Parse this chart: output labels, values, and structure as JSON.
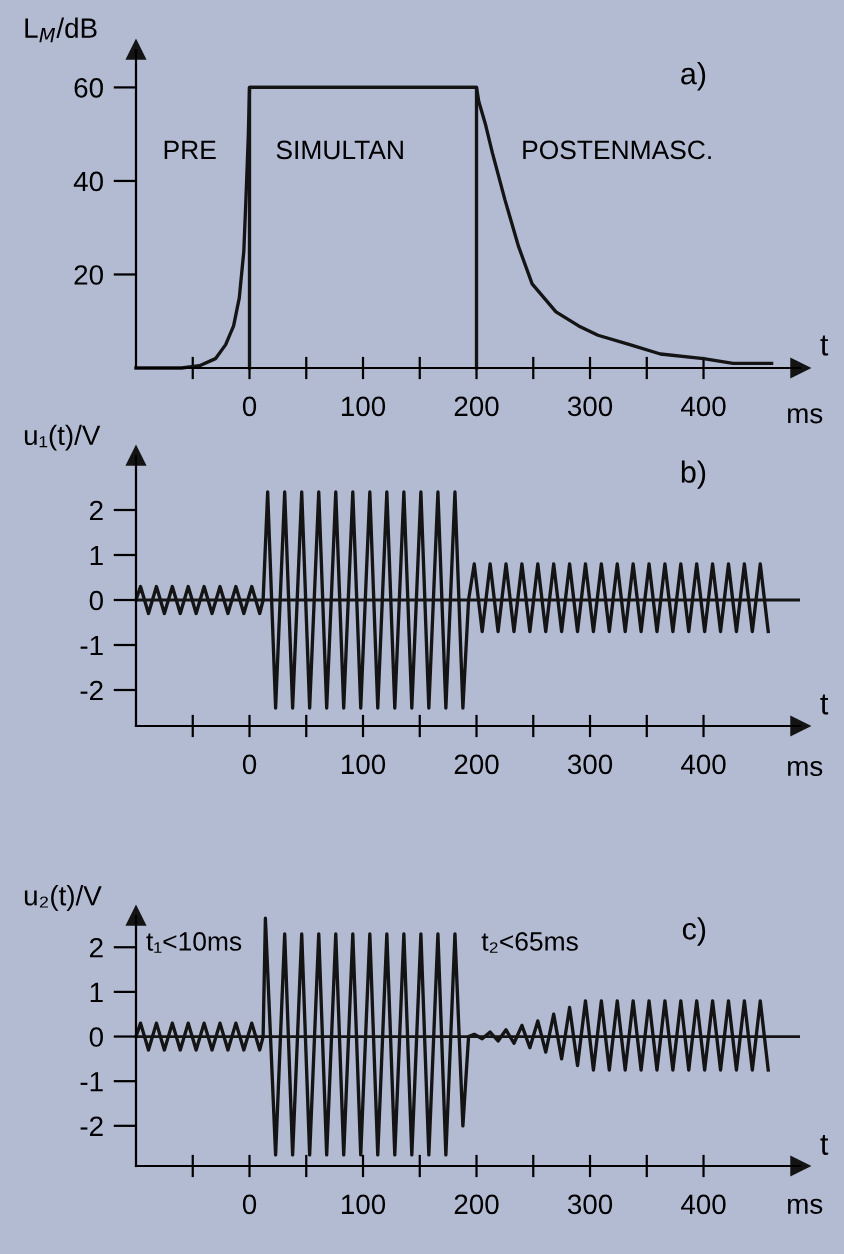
{
  "chart_data": [
    {
      "type": "line",
      "title": "a)",
      "ylabel": "L$_{M}$/dB",
      "xlabel": "t",
      "annotations": [
        "PRE",
        "SIMULTAN",
        "POSTENMASC.",
        "ms"
      ],
      "xlim": [
        -100,
        485
      ],
      "ylim": [
        0,
        68
      ],
      "xticks": [
        {
          "value": -50,
          "label": null
        },
        0,
        {
          "value": 50,
          "label": null
        },
        100,
        {
          "value": 150,
          "label": null
        },
        200,
        {
          "value": 250,
          "label": null
        },
        300,
        {
          "value": 350,
          "label": null
        },
        400
      ],
      "yticks": [
        20,
        40,
        60
      ],
      "grid": false,
      "legend": false,
      "series": [
        {
          "color": "#141414",
          "x": [
            -100,
            -60,
            -44,
            -30,
            -21,
            -14,
            -9,
            -5,
            -3,
            -1,
            0,
            200,
            202,
            208,
            214,
            225,
            237,
            249,
            270,
            290,
            307,
            335,
            362,
            400,
            426,
            460
          ],
          "values": [
            0,
            0,
            0.5,
            2,
            5,
            9,
            15,
            25,
            37,
            50,
            60,
            60,
            57,
            52,
            46,
            36,
            26,
            18,
            12,
            9,
            7,
            5,
            3,
            2,
            1,
            1
          ]
        },
        {
          "color": "#141414",
          "x": [
            0,
            0,
            200,
            200
          ],
          "values": [
            0,
            60,
            60,
            0
          ]
        }
      ]
    },
    {
      "type": "line",
      "title": "b)",
      "ylabel": "u₁(t)/V",
      "xlabel": "t",
      "annotations": [
        "ms"
      ],
      "xlim": [
        -100,
        485
      ],
      "ylim": [
        -2.8,
        3.2
      ],
      "xticks": [
        {
          "value": -50,
          "label": null
        },
        0,
        {
          "value": 50,
          "label": null
        },
        100,
        {
          "value": 150,
          "label": null
        },
        200,
        {
          "value": 250,
          "label": null
        },
        300,
        {
          "value": 350,
          "label": null
        },
        400
      ],
      "yticks": [
        -2,
        -1,
        0,
        1,
        2
      ],
      "grid": false,
      "legend": false,
      "ref_lines": [
        {
          "axis": "y",
          "value": 0
        }
      ],
      "series": [
        {
          "color": "#141414",
          "x": [
            -100,
            -96,
            -89,
            -82,
            -75,
            -68,
            -61,
            -54,
            -47,
            -40,
            -33,
            -26,
            -19,
            -12,
            -5,
            2,
            9,
            12,
            16,
            23,
            31,
            38,
            46,
            53,
            61,
            68,
            76,
            83,
            91,
            98,
            106,
            113,
            121,
            128,
            136,
            143,
            151,
            158,
            166,
            173,
            181,
            188,
            193,
            198,
            205,
            212,
            219,
            226,
            233,
            240,
            247,
            254,
            261,
            268,
            275,
            282,
            289,
            296,
            303,
            310,
            317,
            324,
            331,
            338,
            345,
            352,
            359,
            366,
            373,
            380,
            387,
            394,
            401,
            408,
            415,
            422,
            429,
            436,
            443,
            450,
            457
          ],
          "values": [
            0,
            0.3,
            -0.3,
            0.3,
            -0.3,
            0.3,
            -0.3,
            0.3,
            -0.3,
            0.3,
            -0.3,
            0.3,
            -0.3,
            0.3,
            -0.3,
            0.3,
            -0.3,
            0,
            2.4,
            -2.4,
            2.4,
            -2.4,
            2.4,
            -2.4,
            2.4,
            -2.4,
            2.4,
            -2.4,
            2.4,
            -2.4,
            2.4,
            -2.4,
            2.4,
            -2.4,
            2.4,
            -2.4,
            2.4,
            -2.4,
            2.4,
            -2.4,
            2.4,
            -2.4,
            0,
            0.8,
            -0.7,
            0.8,
            -0.7,
            0.8,
            -0.7,
            0.8,
            -0.7,
            0.8,
            -0.7,
            0.8,
            -0.7,
            0.8,
            -0.7,
            0.8,
            -0.7,
            0.8,
            -0.7,
            0.8,
            -0.7,
            0.8,
            -0.7,
            0.8,
            -0.7,
            0.8,
            -0.7,
            0.8,
            -0.7,
            0.8,
            -0.7,
            0.8,
            -0.7,
            0.8,
            -0.7,
            0.8,
            -0.7,
            0.8,
            -0.7
          ]
        }
      ]
    },
    {
      "type": "line",
      "title": "c)",
      "ylabel": "u₂(t)/V",
      "xlabel": "t",
      "annotations": [
        "t₁<10ms",
        "t₂<65ms",
        "ms"
      ],
      "xlim": [
        -100,
        485
      ],
      "ylim": [
        -2.9,
        2.7
      ],
      "xticks": [
        {
          "value": -50,
          "label": null
        },
        0,
        {
          "value": 50,
          "label": null
        },
        100,
        {
          "value": 150,
          "label": null
        },
        200,
        {
          "value": 250,
          "label": null
        },
        300,
        {
          "value": 350,
          "label": null
        },
        400
      ],
      "yticks": [
        -2,
        -1,
        0,
        1,
        2
      ],
      "grid": false,
      "legend": false,
      "ref_lines": [
        {
          "axis": "y",
          "value": 0
        }
      ],
      "series": [
        {
          "color": "#141414",
          "x": [
            -100,
            -96,
            -89,
            -82,
            -75,
            -68,
            -61,
            -54,
            -47,
            -40,
            -33,
            -26,
            -19,
            -12,
            -5,
            2,
            9,
            12,
            14,
            23,
            31,
            38,
            46,
            53,
            61,
            68,
            76,
            83,
            91,
            98,
            106,
            113,
            121,
            128,
            136,
            143,
            151,
            158,
            166,
            173,
            181,
            188,
            193,
            198,
            205,
            212,
            219,
            226,
            233,
            240,
            247,
            254,
            261,
            268,
            275,
            282,
            289,
            296,
            303,
            310,
            317,
            324,
            331,
            338,
            345,
            352,
            359,
            366,
            373,
            380,
            387,
            394,
            401,
            408,
            415,
            422,
            429,
            436,
            443,
            450,
            457
          ],
          "values": [
            0,
            0.3,
            -0.3,
            0.3,
            -0.3,
            0.3,
            -0.3,
            0.3,
            -0.3,
            0.3,
            -0.3,
            0.3,
            -0.3,
            0.3,
            -0.3,
            0.3,
            -0.3,
            0,
            2.65,
            -2.65,
            2.3,
            -2.65,
            2.3,
            -2.65,
            2.3,
            -2.65,
            2.3,
            -2.65,
            2.3,
            -2.65,
            2.3,
            -2.65,
            2.3,
            -2.65,
            2.3,
            -2.65,
            2.3,
            -2.65,
            2.3,
            -2.65,
            2.3,
            -2,
            0,
            0.05,
            -0.05,
            0.1,
            -0.1,
            0.15,
            -0.15,
            0.25,
            -0.25,
            0.35,
            -0.35,
            0.5,
            -0.5,
            0.65,
            -0.65,
            0.8,
            -0.75,
            0.8,
            -0.75,
            0.8,
            -0.75,
            0.8,
            -0.75,
            0.8,
            -0.75,
            0.8,
            -0.75,
            0.8,
            -0.75,
            0.8,
            -0.75,
            0.8,
            -0.75,
            0.8,
            -0.75,
            0.8,
            -0.75,
            0.8,
            -0.75
          ]
        }
      ]
    }
  ]
}
